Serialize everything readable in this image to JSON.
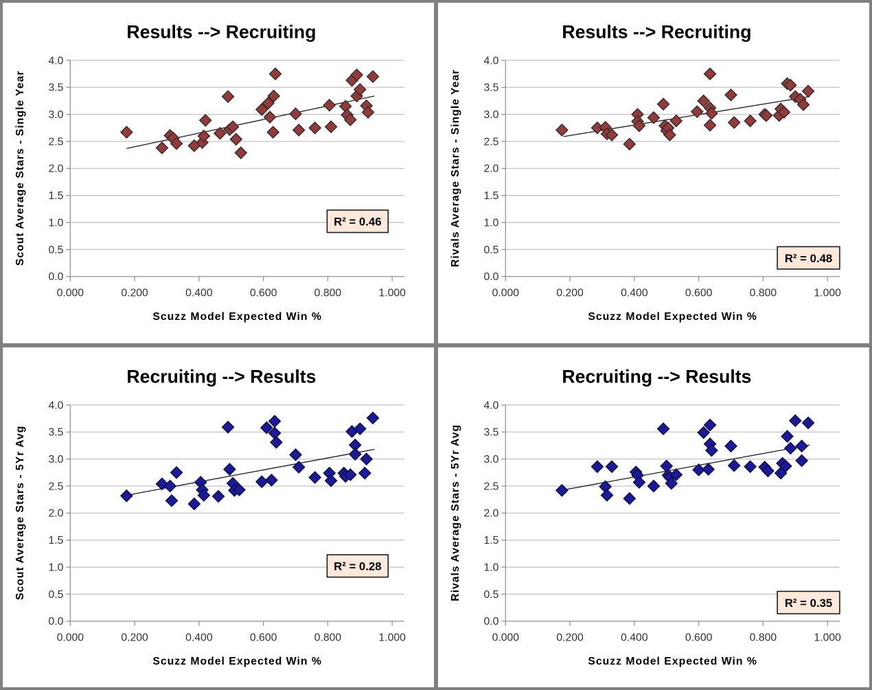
{
  "page": {
    "background": "#ffffff",
    "frame_color": "#808080",
    "gridline_color": "#c3c3c3",
    "axis_color": "#919191",
    "trendline_color": "#1a1a1a",
    "r2_box_fill": "#fce9d9",
    "r2_box_border": "#1a1a1a"
  },
  "chart_data": [
    {
      "type": "scatter",
      "position": "top-left",
      "title": "Results --> Recruiting",
      "ylabel": "Scout Average Stars - Single Year",
      "xlabel": "Scuzz Model Expected Win %",
      "r2_label": "R² = 0.46",
      "r2_position": "middle-right",
      "marker_color": "#993937",
      "marker_edge": "#2f2f2f",
      "xlim": [
        0.0,
        1.0
      ],
      "ylim": [
        0.0,
        4.0
      ],
      "x_tick_labels": [
        "0.000",
        "0.200",
        "0.400",
        "0.600",
        "0.800",
        "1.000"
      ],
      "y_tick_labels": [
        "0.0",
        "0.5",
        "1.0",
        "1.5",
        "2.0",
        "2.5",
        "3.0",
        "3.5",
        "4.0"
      ],
      "trendline": {
        "x1": 0.175,
        "y1": 2.37,
        "x2": 0.945,
        "y2": 3.34
      },
      "points": [
        [
          0.175,
          2.67
        ],
        [
          0.285,
          2.38
        ],
        [
          0.31,
          2.61
        ],
        [
          0.32,
          2.56
        ],
        [
          0.33,
          2.46
        ],
        [
          0.385,
          2.42
        ],
        [
          0.41,
          2.48
        ],
        [
          0.415,
          2.6
        ],
        [
          0.42,
          2.89
        ],
        [
          0.465,
          2.65
        ],
        [
          0.49,
          3.33
        ],
        [
          0.495,
          2.72
        ],
        [
          0.505,
          2.77
        ],
        [
          0.515,
          2.54
        ],
        [
          0.53,
          2.29
        ],
        [
          0.595,
          3.09
        ],
        [
          0.615,
          3.21
        ],
        [
          0.62,
          2.95
        ],
        [
          0.63,
          2.67
        ],
        [
          0.632,
          3.34
        ],
        [
          0.637,
          3.75
        ],
        [
          0.7,
          3.01
        ],
        [
          0.71,
          2.71
        ],
        [
          0.76,
          2.75
        ],
        [
          0.805,
          3.17
        ],
        [
          0.81,
          2.77
        ],
        [
          0.855,
          3.15
        ],
        [
          0.86,
          2.99
        ],
        [
          0.87,
          2.9
        ],
        [
          0.875,
          3.63
        ],
        [
          0.89,
          3.73
        ],
        [
          0.89,
          3.34
        ],
        [
          0.9,
          3.46
        ],
        [
          0.92,
          3.16
        ],
        [
          0.925,
          3.04
        ],
        [
          0.94,
          3.7
        ]
      ]
    },
    {
      "type": "scatter",
      "position": "top-right",
      "title": "Results --> Recruiting",
      "ylabel": "Rivals Average Stars - Single Year",
      "xlabel": "Scuzz Model Expected Win %",
      "r2_label": "R² = 0.48",
      "r2_position": "lower-right",
      "marker_color": "#993937",
      "marker_edge": "#2f2f2f",
      "xlim": [
        0.0,
        1.0
      ],
      "ylim": [
        0.0,
        4.0
      ],
      "x_tick_labels": [
        "0.000",
        "0.200",
        "0.400",
        "0.600",
        "0.800",
        "1.000"
      ],
      "y_tick_labels": [
        "0.0",
        "0.5",
        "1.0",
        "1.5",
        "2.0",
        "2.5",
        "3.0",
        "3.5",
        "4.0"
      ],
      "trendline": {
        "x1": 0.18,
        "y1": 2.59,
        "x2": 0.945,
        "y2": 3.33
      },
      "points": [
        [
          0.175,
          2.71
        ],
        [
          0.285,
          2.75
        ],
        [
          0.31,
          2.76
        ],
        [
          0.315,
          2.64
        ],
        [
          0.33,
          2.62
        ],
        [
          0.385,
          2.45
        ],
        [
          0.41,
          3.0
        ],
        [
          0.41,
          2.87
        ],
        [
          0.415,
          2.79
        ],
        [
          0.46,
          2.94
        ],
        [
          0.49,
          3.19
        ],
        [
          0.495,
          2.79
        ],
        [
          0.5,
          2.7
        ],
        [
          0.505,
          2.75
        ],
        [
          0.51,
          2.62
        ],
        [
          0.53,
          2.88
        ],
        [
          0.595,
          3.05
        ],
        [
          0.615,
          3.25
        ],
        [
          0.635,
          3.75
        ],
        [
          0.635,
          3.12
        ],
        [
          0.64,
          3.02
        ],
        [
          0.635,
          2.8
        ],
        [
          0.7,
          3.36
        ],
        [
          0.71,
          2.85
        ],
        [
          0.76,
          2.88
        ],
        [
          0.805,
          3.0
        ],
        [
          0.81,
          2.98
        ],
        [
          0.85,
          2.98
        ],
        [
          0.855,
          3.1
        ],
        [
          0.865,
          3.04
        ],
        [
          0.875,
          3.57
        ],
        [
          0.885,
          3.54
        ],
        [
          0.9,
          3.33
        ],
        [
          0.915,
          3.28
        ],
        [
          0.925,
          3.18
        ],
        [
          0.94,
          3.43
        ]
      ]
    },
    {
      "type": "scatter",
      "position": "bottom-left",
      "title": "Recruiting --> Results",
      "ylabel": "Scout Average Stars - 5Yr Avg",
      "xlabel": "Scuzz Model Expected Win %",
      "r2_label": "R² = 0.28",
      "r2_position": "middle-right",
      "marker_color": "#1a19a1",
      "marker_edge": "#12123f",
      "xlim": [
        0.0,
        1.0
      ],
      "ylim": [
        0.0,
        4.0
      ],
      "x_tick_labels": [
        "0.000",
        "0.200",
        "0.400",
        "0.600",
        "0.800",
        "1.000"
      ],
      "y_tick_labels": [
        "0.0",
        "0.5",
        "1.0",
        "1.5",
        "2.0",
        "2.5",
        "3.0",
        "3.5",
        "4.0"
      ],
      "trendline": {
        "x1": 0.175,
        "y1": 2.33,
        "x2": 0.945,
        "y2": 3.18
      },
      "points": [
        [
          0.175,
          2.32
        ],
        [
          0.285,
          2.54
        ],
        [
          0.31,
          2.5
        ],
        [
          0.315,
          2.23
        ],
        [
          0.33,
          2.75
        ],
        [
          0.385,
          2.17
        ],
        [
          0.405,
          2.57
        ],
        [
          0.41,
          2.43
        ],
        [
          0.415,
          2.33
        ],
        [
          0.46,
          2.31
        ],
        [
          0.49,
          3.59
        ],
        [
          0.495,
          2.81
        ],
        [
          0.505,
          2.55
        ],
        [
          0.51,
          2.42
        ],
        [
          0.525,
          2.43
        ],
        [
          0.595,
          2.58
        ],
        [
          0.61,
          3.58
        ],
        [
          0.625,
          2.61
        ],
        [
          0.635,
          3.7
        ],
        [
          0.635,
          3.48
        ],
        [
          0.64,
          3.31
        ],
        [
          0.7,
          3.08
        ],
        [
          0.71,
          2.85
        ],
        [
          0.76,
          2.66
        ],
        [
          0.805,
          2.74
        ],
        [
          0.81,
          2.6
        ],
        [
          0.85,
          2.74
        ],
        [
          0.855,
          2.68
        ],
        [
          0.87,
          2.71
        ],
        [
          0.875,
          3.51
        ],
        [
          0.885,
          3.26
        ],
        [
          0.885,
          3.09
        ],
        [
          0.9,
          3.56
        ],
        [
          0.915,
          2.74
        ],
        [
          0.92,
          3.0
        ],
        [
          0.94,
          3.76
        ]
      ]
    },
    {
      "type": "scatter",
      "position": "bottom-right",
      "title": "Recruiting --> Results",
      "ylabel": "Rivals Average Stars - 5Yr Avg",
      "xlabel": "Scuzz Model Expected Win %",
      "r2_label": "R² = 0.35",
      "r2_position": "lower-right",
      "marker_color": "#1a19a1",
      "marker_edge": "#12123f",
      "xlim": [
        0.0,
        1.0
      ],
      "ylim": [
        0.0,
        4.0
      ],
      "x_tick_labels": [
        "0.000",
        "0.200",
        "0.400",
        "0.600",
        "0.800",
        "1.000"
      ],
      "y_tick_labels": [
        "0.0",
        "0.5",
        "1.0",
        "1.5",
        "2.0",
        "2.5",
        "3.0",
        "3.5",
        "4.0"
      ],
      "trendline": {
        "x1": 0.19,
        "y1": 2.44,
        "x2": 0.945,
        "y2": 3.26
      },
      "points": [
        [
          0.175,
          2.42
        ],
        [
          0.285,
          2.86
        ],
        [
          0.31,
          2.49
        ],
        [
          0.315,
          2.33
        ],
        [
          0.33,
          2.86
        ],
        [
          0.385,
          2.27
        ],
        [
          0.405,
          2.76
        ],
        [
          0.41,
          2.7
        ],
        [
          0.415,
          2.57
        ],
        [
          0.46,
          2.5
        ],
        [
          0.49,
          3.56
        ],
        [
          0.5,
          2.87
        ],
        [
          0.505,
          2.7
        ],
        [
          0.51,
          2.66
        ],
        [
          0.515,
          2.55
        ],
        [
          0.53,
          2.71
        ],
        [
          0.6,
          2.8
        ],
        [
          0.615,
          3.49
        ],
        [
          0.63,
          2.81
        ],
        [
          0.635,
          3.63
        ],
        [
          0.635,
          3.28
        ],
        [
          0.64,
          3.16
        ],
        [
          0.7,
          3.24
        ],
        [
          0.71,
          2.88
        ],
        [
          0.76,
          2.86
        ],
        [
          0.805,
          2.85
        ],
        [
          0.815,
          2.78
        ],
        [
          0.855,
          2.74
        ],
        [
          0.86,
          2.92
        ],
        [
          0.87,
          2.87
        ],
        [
          0.875,
          3.42
        ],
        [
          0.885,
          3.2
        ],
        [
          0.9,
          3.71
        ],
        [
          0.92,
          3.24
        ],
        [
          0.92,
          2.97
        ],
        [
          0.94,
          3.67
        ]
      ]
    }
  ]
}
